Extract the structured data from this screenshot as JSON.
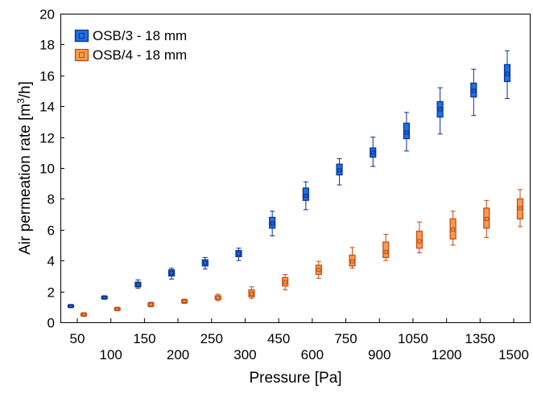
{
  "chart_data": {
    "type": "boxplot",
    "title": "",
    "xlabel": "Pressure [Pa]",
    "ylabel": "Air permeation rate [m³/h]",
    "ylabel_main": "Air permeation rate [m",
    "ylabel_sup": "3",
    "ylabel_tail": "/h]",
    "ylim": [
      0,
      20
    ],
    "yticks": [
      "0",
      "2",
      "4",
      "6",
      "8",
      "10",
      "12",
      "14",
      "16",
      "18",
      "20"
    ],
    "categories": [
      "50",
      "100",
      "150",
      "200",
      "250",
      "300",
      "450",
      "600",
      "750",
      "900",
      "1050",
      "1200",
      "1350",
      "1500"
    ],
    "legend_position": "top-left",
    "grid": false,
    "series": [
      {
        "name": "OSB/3 - 18 mm",
        "color": "#1f6fe5",
        "edge": "#0b2f8c",
        "boxes": [
          {
            "whisker_low": 0.95,
            "q1": 0.98,
            "median": 1.05,
            "q3": 1.12,
            "whisker_high": 1.15
          },
          {
            "whisker_low": 1.5,
            "q1": 1.52,
            "median": 1.6,
            "q3": 1.68,
            "whisker_high": 1.72
          },
          {
            "whisker_low": 2.2,
            "q1": 2.3,
            "median": 2.45,
            "q3": 2.6,
            "whisker_high": 2.75
          },
          {
            "whisker_low": 2.8,
            "q1": 3.0,
            "median": 3.2,
            "q3": 3.4,
            "whisker_high": 3.5
          },
          {
            "whisker_low": 3.45,
            "q1": 3.65,
            "median": 3.85,
            "q3": 4.05,
            "whisker_high": 4.2
          },
          {
            "whisker_low": 4.0,
            "q1": 4.25,
            "median": 4.45,
            "q3": 4.65,
            "whisker_high": 4.8
          },
          {
            "whisker_low": 5.6,
            "q1": 6.1,
            "median": 6.4,
            "q3": 6.8,
            "whisker_high": 7.2
          },
          {
            "whisker_low": 7.3,
            "q1": 7.9,
            "median": 8.2,
            "q3": 8.7,
            "whisker_high": 9.1
          },
          {
            "whisker_low": 8.9,
            "q1": 9.55,
            "median": 9.85,
            "q3": 10.25,
            "whisker_high": 10.6
          },
          {
            "whisker_low": 10.1,
            "q1": 10.7,
            "median": 11.0,
            "q3": 11.3,
            "whisker_high": 12.0
          },
          {
            "whisker_low": 11.1,
            "q1": 11.9,
            "median": 12.3,
            "q3": 12.9,
            "whisker_high": 13.6
          },
          {
            "whisker_low": 12.2,
            "q1": 13.3,
            "median": 13.8,
            "q3": 14.3,
            "whisker_high": 15.2
          },
          {
            "whisker_low": 13.4,
            "q1": 14.6,
            "median": 15.0,
            "q3": 15.5,
            "whisker_high": 16.4
          },
          {
            "whisker_low": 14.5,
            "q1": 15.6,
            "median": 16.1,
            "q3": 16.7,
            "whisker_high": 17.6
          }
        ]
      },
      {
        "name": "OSB/4 - 18 mm",
        "color": "#f79a4f",
        "edge": "#c04a12",
        "boxes": [
          {
            "whisker_low": 0.38,
            "q1": 0.42,
            "median": 0.5,
            "q3": 0.58,
            "whisker_high": 0.62
          },
          {
            "whisker_low": 0.75,
            "q1": 0.78,
            "median": 0.85,
            "q3": 0.93,
            "whisker_high": 0.98
          },
          {
            "whisker_low": 1.0,
            "q1": 1.05,
            "median": 1.15,
            "q3": 1.25,
            "whisker_high": 1.3
          },
          {
            "whisker_low": 1.22,
            "q1": 1.27,
            "median": 1.35,
            "q3": 1.45,
            "whisker_high": 1.5
          },
          {
            "whisker_low": 1.4,
            "q1": 1.48,
            "median": 1.6,
            "q3": 1.72,
            "whisker_high": 1.82
          },
          {
            "whisker_low": 1.55,
            "q1": 1.65,
            "median": 1.85,
            "q3": 2.1,
            "whisker_high": 2.3
          },
          {
            "whisker_low": 2.1,
            "q1": 2.35,
            "median": 2.6,
            "q3": 2.9,
            "whisker_high": 3.1
          },
          {
            "whisker_low": 2.85,
            "q1": 3.1,
            "median": 3.4,
            "q3": 3.7,
            "whisker_high": 3.95
          },
          {
            "whisker_low": 3.5,
            "q1": 3.65,
            "median": 3.95,
            "q3": 4.35,
            "whisker_high": 4.85
          },
          {
            "whisker_low": 4.0,
            "q1": 4.2,
            "median": 4.55,
            "q3": 5.2,
            "whisker_high": 5.7
          },
          {
            "whisker_low": 4.5,
            "q1": 4.8,
            "median": 5.25,
            "q3": 5.9,
            "whisker_high": 6.5
          },
          {
            "whisker_low": 5.0,
            "q1": 5.4,
            "median": 6.0,
            "q3": 6.7,
            "whisker_high": 7.2
          },
          {
            "whisker_low": 5.5,
            "q1": 6.1,
            "median": 6.7,
            "q3": 7.4,
            "whisker_high": 7.9
          },
          {
            "whisker_low": 6.2,
            "q1": 6.7,
            "median": 7.4,
            "q3": 8.0,
            "whisker_high": 8.6
          }
        ]
      }
    ]
  }
}
